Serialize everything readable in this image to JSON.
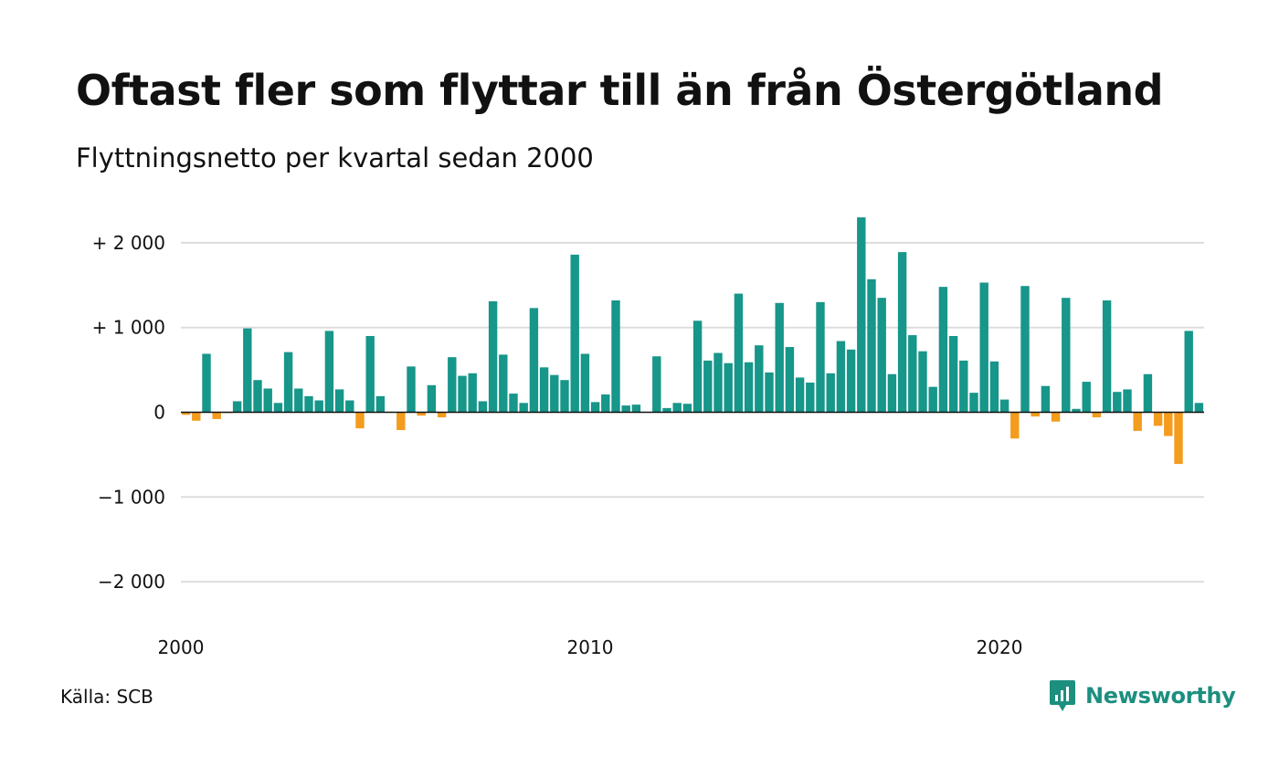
{
  "title": "Oftast fler som flyttar till än från Östergötland",
  "subtitle": "Flyttningsnetto per kvartal sedan 2000",
  "source": "Källa: SCB",
  "brand": {
    "name": "Newsworthy",
    "icon": "newsworthy-logo-icon",
    "color": "#1c8f7f"
  },
  "colors": {
    "positive": "#17968a",
    "negative": "#f39c1d",
    "grid": "#dddddd",
    "zero_line": "#111111"
  },
  "chart_data": {
    "type": "bar",
    "title": "Oftast fler som flyttar till än från Östergötland",
    "subtitle": "Flyttningsnetto per kvartal sedan 2000",
    "xlabel": "",
    "ylabel": "",
    "grid": true,
    "ylim": [
      -2300,
      2300
    ],
    "xlim": [
      2000,
      2025
    ],
    "y_ticks": [
      {
        "value": 2000,
        "label": "+ 2 000"
      },
      {
        "value": 1000,
        "label": "+ 1 000"
      },
      {
        "value": 0,
        "label": "0"
      },
      {
        "value": -1000,
        "label": "−1 000"
      },
      {
        "value": -2000,
        "label": "−2 000"
      }
    ],
    "x_ticks": [
      {
        "value": 2000,
        "label": "2000"
      },
      {
        "value": 2010,
        "label": "2010"
      },
      {
        "value": 2020,
        "label": "2020"
      }
    ],
    "series": [
      {
        "x_start": "2000 Q1",
        "frequency": "quarterly",
        "values": [
          -30,
          -100,
          690,
          -80,
          -10,
          130,
          990,
          380,
          280,
          110,
          710,
          280,
          190,
          140,
          960,
          270,
          140,
          -190,
          900,
          190,
          0,
          -210,
          540,
          -40,
          320,
          -60,
          650,
          430,
          460,
          130,
          1310,
          680,
          220,
          110,
          1230,
          530,
          440,
          380,
          1860,
          690,
          120,
          210,
          1320,
          80,
          90,
          0,
          660,
          50,
          110,
          100,
          1080,
          610,
          700,
          580,
          1400,
          590,
          790,
          470,
          1290,
          770,
          410,
          350,
          1300,
          460,
          840,
          740,
          2300,
          1570,
          1350,
          450,
          1890,
          910,
          720,
          300,
          1480,
          900,
          610,
          230,
          1530,
          600,
          150,
          -310,
          1490,
          -50,
          310,
          -110,
          1350,
          40,
          360,
          -60,
          1320,
          240,
          270,
          -220,
          450,
          -160,
          -280,
          -610,
          960,
          110
        ]
      }
    ]
  }
}
